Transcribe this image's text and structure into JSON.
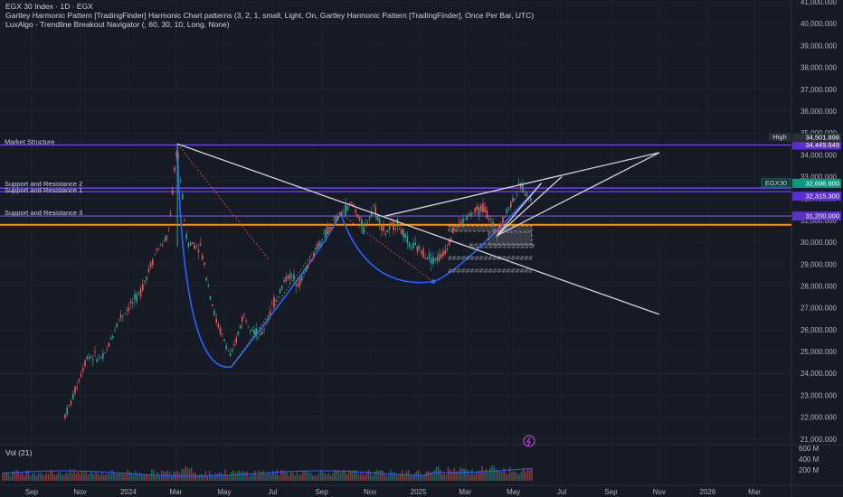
{
  "header": {
    "title": "EGX 30 Index · 1D · EGX",
    "indicator1": "Gartley Harmonic Pattern [TradingFinder] Harmonic Chart patterns (3, 2, 1, small, Light, On, Gartley Harmonic Pattern [TradingFinder], Once Per Bar, UTC)",
    "indicator2": "LuxAlgo - Trendline Breakout Navigator (, 60, 30, 10, Long, None)"
  },
  "volume_pane": {
    "label": "Vol (21)"
  },
  "colors": {
    "background": "#161a25",
    "bull": "#26a69a",
    "bear": "#ef5350",
    "level_line": "#7c4dff",
    "level_tag": "#5b2ecf",
    "orange_line": "#ff9800",
    "pattern_curve": "#2962ff",
    "trendline": "#d1d4dc",
    "last_price_tag": "#089981"
  },
  "chart_data": {
    "type": "candlestick",
    "symbol": "EGX30",
    "timeframe": "1D",
    "y_axis": {
      "scale": "linear",
      "range": [
        20000,
        41000
      ],
      "tick_labels": [
        "41,000.000",
        "40,000.000",
        "39,000.000",
        "38,000.000",
        "37,000.000",
        "36,000.000",
        "35,000.000",
        "34,000.000",
        "33,000.000",
        "32,000.000",
        "31,000.000",
        "30,000.000",
        "29,000.000",
        "28,000.000",
        "27,000.000",
        "26,000.000",
        "25,000.000",
        "24,000.000",
        "23,000.000",
        "22,000.000",
        "21,000.000"
      ],
      "tick_values": [
        41000,
        40000,
        39000,
        38000,
        37000,
        36000,
        35000,
        34000,
        33000,
        32000,
        31000,
        30000,
        29000,
        28000,
        27000,
        26000,
        25000,
        24000,
        23000,
        22000,
        21000
      ]
    },
    "x_axis": {
      "tick_labels": [
        "Sep",
        "Nov",
        "2024",
        "Mar",
        "May",
        "Jul",
        "Sep",
        "Nov",
        "2025",
        "Mar",
        "May",
        "Jul",
        "Sep",
        "Nov",
        "2026",
        "Mar"
      ],
      "tick_dates": [
        "2023-09-01",
        "2023-11-01",
        "2024-01-01",
        "2024-03-01",
        "2024-05-01",
        "2024-07-01",
        "2024-09-01",
        "2024-11-01",
        "2025-01-01",
        "2025-03-01",
        "2025-05-01",
        "2025-07-01",
        "2025-09-01",
        "2025-11-01",
        "2026-01-01",
        "2026-03-01"
      ]
    },
    "price_path": [
      [
        "2023-09-01",
        19500
      ],
      [
        "2023-10-01",
        21200
      ],
      [
        "2023-10-20",
        22600
      ],
      [
        "2023-11-10",
        24800
      ],
      [
        "2023-12-01",
        24700
      ],
      [
        "2023-12-20",
        26500
      ],
      [
        "2024-01-15",
        27600
      ],
      [
        "2024-02-05",
        29600
      ],
      [
        "2024-02-20",
        30200
      ],
      [
        "2024-03-03",
        34500
      ],
      [
        "2024-03-06",
        33200
      ],
      [
        "2024-03-15",
        30000
      ],
      [
        "2024-04-01",
        29800
      ],
      [
        "2024-04-20",
        26500
      ],
      [
        "2024-05-10",
        24700
      ],
      [
        "2024-05-25",
        26700
      ],
      [
        "2024-06-15",
        25600
      ],
      [
        "2024-07-01",
        27100
      ],
      [
        "2024-07-20",
        28500
      ],
      [
        "2024-08-05",
        28200
      ],
      [
        "2024-08-25",
        29700
      ],
      [
        "2024-09-10",
        30600
      ],
      [
        "2024-09-25",
        31300
      ],
      [
        "2024-10-10",
        31800
      ],
      [
        "2024-10-25",
        30500
      ],
      [
        "2024-11-05",
        31700
      ],
      [
        "2024-11-20",
        30400
      ],
      [
        "2024-12-05",
        30900
      ],
      [
        "2024-12-20",
        29900
      ],
      [
        "2025-01-05",
        29600
      ],
      [
        "2025-01-20",
        29200
      ],
      [
        "2025-02-01",
        29400
      ],
      [
        "2025-02-15",
        30600
      ],
      [
        "2025-03-05",
        31200
      ],
      [
        "2025-03-25",
        31600
      ],
      [
        "2025-04-10",
        30400
      ],
      [
        "2025-04-25",
        31600
      ],
      [
        "2025-05-10",
        32600
      ],
      [
        "2025-05-25",
        31800
      ],
      [
        "2025-06-05",
        32700
      ]
    ],
    "volume": {
      "label": "Vol (21)",
      "tick_labels": [
        "600 M",
        "400 M",
        "200 M"
      ],
      "tick_values": [
        600,
        400,
        200
      ]
    },
    "high_marker": {
      "label": "High",
      "value": "34,501.898"
    },
    "last_price": {
      "label": "EGX30",
      "value": "32,696.900"
    },
    "levels": [
      {
        "name": "Market Structure",
        "value": 34449.649,
        "axis_label": "34,449.649"
      },
      {
        "name": "Support and Resistance 2",
        "value": 32480.5,
        "axis_label": "32,480.500"
      },
      {
        "name": "Support and Resistance 1",
        "value": 32315.3,
        "axis_label": "32,315.300"
      },
      {
        "name": "Support and Resistance 3",
        "value": 31200.0,
        "axis_label": "31,200.000"
      }
    ],
    "orange_level": 30800,
    "pattern_points": [
      [
        "2024-03-03",
        34500
      ],
      [
        "2024-05-10",
        24300
      ],
      [
        "2024-09-25",
        31300
      ],
      [
        "2025-01-20",
        28200
      ],
      [
        "2025-06-05",
        32700
      ]
    ],
    "trendlines": [
      [
        [
          "2024-03-03",
          34500
        ],
        [
          "2025-11-01",
          26700
        ]
      ],
      [
        [
          "2024-11-20",
          31200
        ],
        [
          "2025-11-01",
          34100
        ]
      ],
      [
        [
          "2025-04-10",
          30300
        ],
        [
          "2025-11-01",
          34100
        ]
      ],
      [
        [
          "2025-04-10",
          30300
        ],
        [
          "2025-07-01",
          33000
        ]
      ],
      [
        [
          "2025-04-10",
          30300
        ],
        [
          "2025-06-05",
          32700
        ]
      ]
    ]
  }
}
